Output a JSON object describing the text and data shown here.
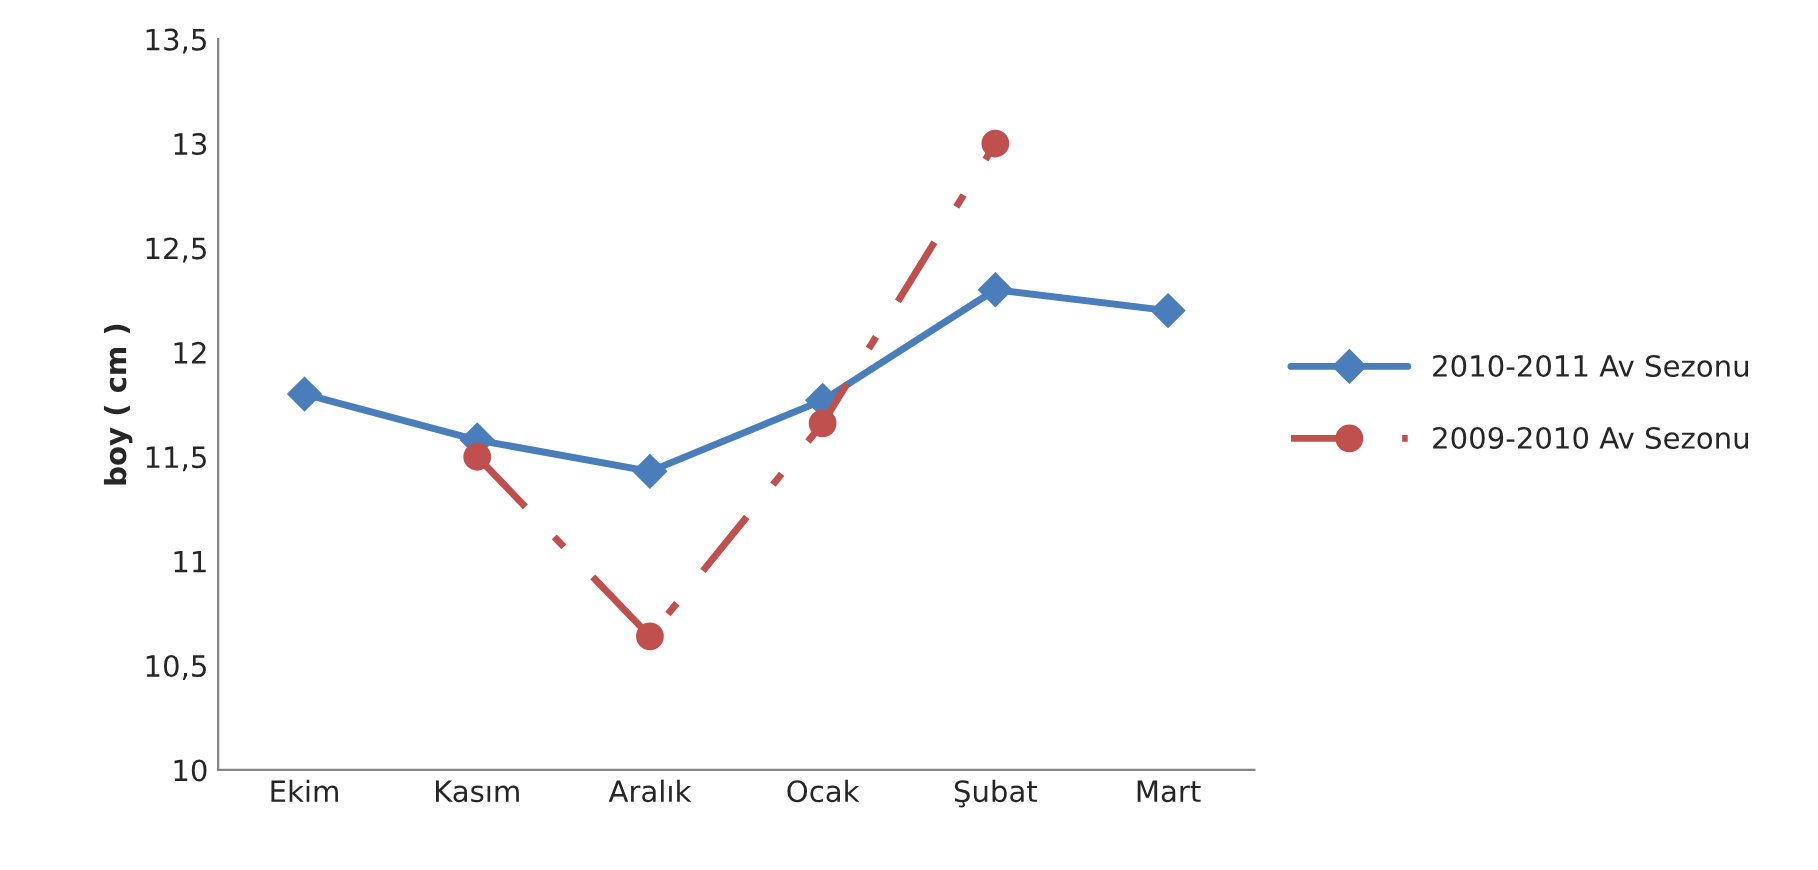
{
  "chart_data": {
    "type": "line",
    "ylabel": "boy ( cm )",
    "categories": [
      "Ekim",
      "Kasım",
      "Aralık",
      "Ocak",
      "Şubat",
      "Mart"
    ],
    "series": [
      {
        "name": "2010-2011 Av Sezonu",
        "color": "#4a7ebb",
        "values": [
          11.8,
          11.58,
          11.43,
          11.77,
          12.3,
          12.2
        ],
        "marker": "diamond",
        "line_style": "solid"
      },
      {
        "name": "2009-2010 Av Sezonu",
        "color": "#c0504d",
        "values": [
          null,
          11.5,
          10.64,
          11.66,
          13.0,
          null
        ],
        "marker": "circle",
        "line_style": "dashed"
      }
    ],
    "ylim": [
      10,
      13.5
    ],
    "yticks": [
      {
        "value": 10,
        "label": "10"
      },
      {
        "value": 10.5,
        "label": "10,5"
      },
      {
        "value": 11,
        "label": "11"
      },
      {
        "value": 11.5,
        "label": "11,5"
      },
      {
        "value": 12,
        "label": "12"
      },
      {
        "value": 12.5,
        "label": "12,5"
      },
      {
        "value": 13,
        "label": "13"
      },
      {
        "value": 13.5,
        "label": "13,5"
      }
    ],
    "grid": false,
    "legend": "right"
  }
}
